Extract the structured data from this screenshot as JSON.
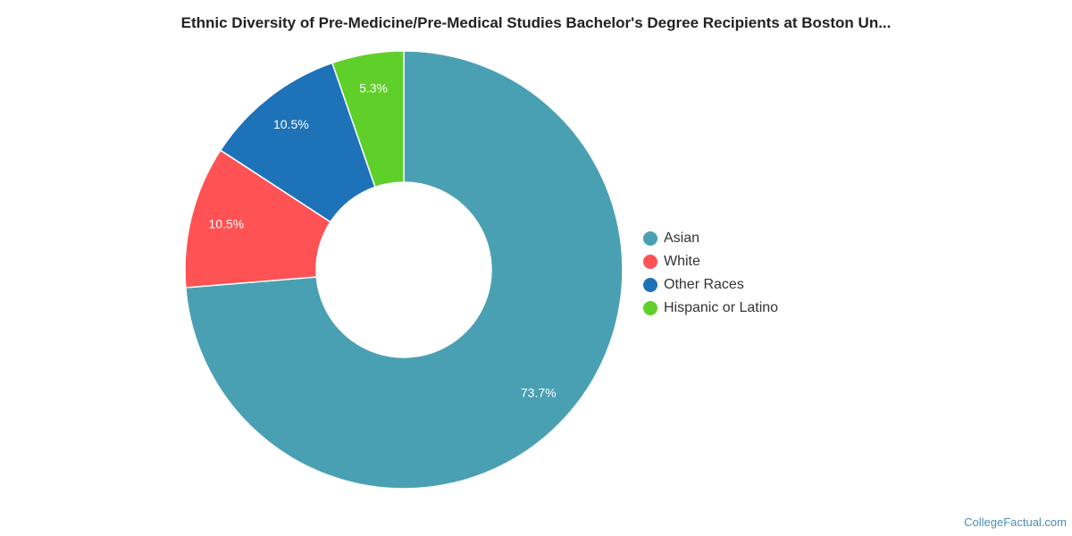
{
  "chart_data": {
    "type": "pie",
    "donut": true,
    "title": "Ethnic Diversity of Pre-Medicine/Pre-Medical Studies Bachelor's Degree Recipients at Boston Un...",
    "legend_position": "right",
    "slices": [
      {
        "name": "Asian",
        "value": 73.7,
        "label": "73.7%",
        "color": "#4aa0b3"
      },
      {
        "name": "White",
        "value": 10.5,
        "label": "10.5%",
        "color": "#fe5254"
      },
      {
        "name": "Other Races",
        "value": 10.5,
        "label": "10.5%",
        "color": "#1e72b8"
      },
      {
        "name": "Hispanic or Latino",
        "value": 5.3,
        "label": "5.3%",
        "color": "#5fcf29"
      }
    ]
  },
  "footer": {
    "credit": "CollegeFactual.com"
  }
}
